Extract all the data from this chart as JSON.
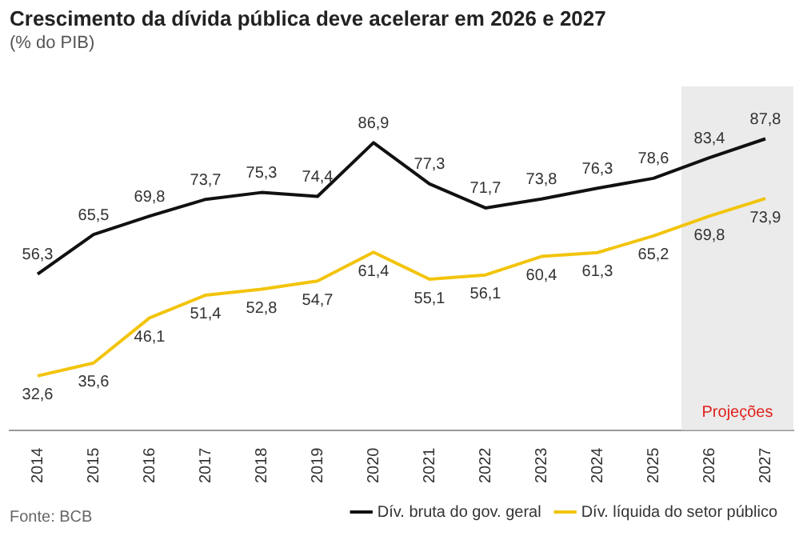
{
  "chart_data": {
    "type": "line",
    "title": "Crescimento da dívida pública deve acelerar em 2026 e 2027",
    "subtitle": "(% do PIB)",
    "categories": [
      "2014",
      "2015",
      "2016",
      "2017",
      "2018",
      "2019",
      "2020",
      "2021",
      "2022",
      "2023",
      "2024",
      "2025",
      "2026",
      "2027"
    ],
    "series": [
      {
        "name": "Dív. bruta do gov. geral",
        "color": "#111111",
        "values": [
          56.3,
          65.5,
          69.8,
          73.7,
          75.3,
          74.4,
          86.9,
          77.3,
          71.7,
          73.8,
          76.3,
          78.6,
          83.4,
          87.8
        ],
        "value_labels": [
          "56,3",
          "65,5",
          "69,8",
          "73,7",
          "75,3",
          "74,4",
          "86,9",
          "77,3",
          "71,7",
          "73,8",
          "76,3",
          "78,6",
          "83,4",
          "87,8"
        ]
      },
      {
        "name": "Dív. líquida do setor público",
        "color": "#f2c40c",
        "values": [
          32.6,
          35.6,
          46.1,
          51.4,
          52.8,
          54.7,
          61.4,
          55.1,
          56.1,
          60.4,
          61.3,
          65.2,
          69.8,
          73.9
        ],
        "value_labels": [
          "32,6",
          "35,6",
          "46,1",
          "51,4",
          "52,8",
          "54,7",
          "61,4",
          "55,1",
          "56,1",
          "60,4",
          "61,3",
          "65,2",
          "69,8",
          "73,9"
        ]
      }
    ],
    "bands": [
      {
        "axis": "x",
        "from": "2026",
        "to": "2027",
        "label": "Projeções",
        "color": "#ebebeb"
      }
    ],
    "grid": false,
    "legend": "bottom right",
    "tick_labels": "x",
    "marker": "none",
    "line_style": "solid",
    "annotations": [
      "Fonte: BCB"
    ]
  }
}
